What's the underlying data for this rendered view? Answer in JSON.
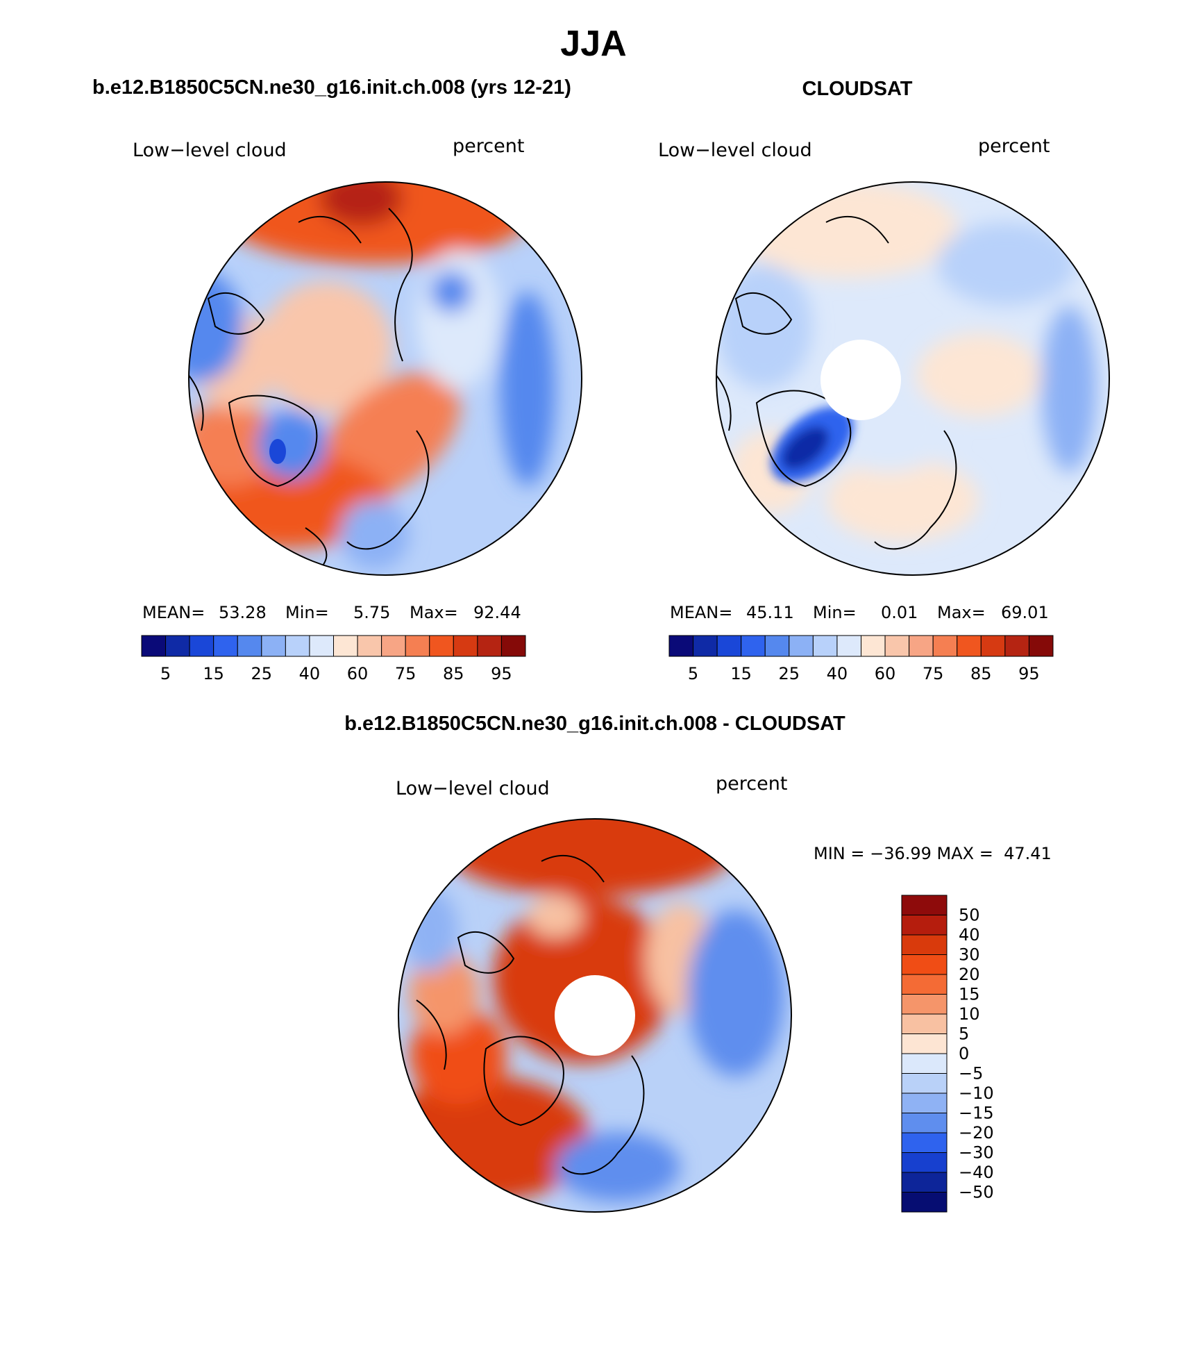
{
  "main_title": "JJA",
  "panels": [
    {
      "title": "b.e12.B1850C5CN.ne30_g16.init.ch.008 (yrs 12-21)",
      "left_label": "Low−level cloud",
      "right_label": "percent",
      "stats": {
        "mean_label": "MEAN=",
        "mean_value": "53.28",
        "min_label": "Min=",
        "min_value": "5.75",
        "max_label": "Max=",
        "max_value": "92.44"
      }
    },
    {
      "title": "CLOUDSAT",
      "left_label": "Low−level cloud",
      "right_label": "percent",
      "stats": {
        "mean_label": "MEAN=",
        "mean_value": "45.11",
        "min_label": "Min=",
        "min_value": "0.01",
        "max_label": "Max=",
        "max_value": "69.01"
      }
    },
    {
      "title": "b.e12.B1850C5CN.ne30_g16.init.ch.008 - CLOUDSAT",
      "left_label": "Low−level cloud",
      "right_label": "percent",
      "stats": {
        "text": "MIN = −36.99 MAX =  47.41"
      }
    }
  ],
  "colorbars": {
    "absolute": {
      "tick_labels": [
        "5",
        "15",
        "25",
        "40",
        "60",
        "75",
        "85",
        "95"
      ],
      "colors": [
        "#0a0a78",
        "#0f2aa6",
        "#1a47d8",
        "#2f63ee",
        "#5588ee",
        "#8cb1f5",
        "#b8d1fa",
        "#dde9fb",
        "#fde6d4",
        "#f9c6ab",
        "#f7a585",
        "#f57f52",
        "#f0561f",
        "#d63a12",
        "#b52412",
        "#850a08"
      ]
    },
    "difference": {
      "tick_labels": [
        "50",
        "40",
        "30",
        "20",
        "15",
        "10",
        "5",
        "0",
        "−5",
        "−10",
        "−15",
        "−20",
        "−30",
        "−40",
        "−50"
      ],
      "colors": [
        "#8e0b0b",
        "#b51d0d",
        "#d93a0c",
        "#f04d15",
        "#f46b35",
        "#f5956a",
        "#f8c1a2",
        "#fde5d3",
        "#dbe8fb",
        "#b9d1f8",
        "#8fb2f4",
        "#5f8eee",
        "#2f63ee",
        "#1740cf",
        "#0d2599",
        "#060d72"
      ]
    }
  },
  "chart_data": [
    {
      "type": "heatmap",
      "title": "b.e12.B1850C5CN.ne30_g16.init.ch.008 (yrs 12-21)",
      "field": "Low−level cloud",
      "units": "percent",
      "projection": "north polar stereographic",
      "mean": 53.28,
      "min": 5.75,
      "max": 92.44,
      "contour_levels": [
        5,
        10,
        15,
        20,
        25,
        30,
        40,
        50,
        60,
        70,
        75,
        80,
        85,
        90,
        95
      ]
    },
    {
      "type": "heatmap",
      "title": "CLOUDSAT",
      "field": "Low−level cloud",
      "units": "percent",
      "projection": "north polar stereographic",
      "mean": 45.11,
      "min": 0.01,
      "max": 69.01,
      "contour_levels": [
        5,
        10,
        15,
        20,
        25,
        30,
        40,
        50,
        60,
        70,
        75,
        80,
        85,
        90,
        95
      ]
    },
    {
      "type": "heatmap",
      "title": "b.e12.B1850C5CN.ne30_g16.init.ch.008 - CLOUDSAT",
      "field": "Low−level cloud",
      "units": "percent",
      "projection": "north polar stereographic",
      "min": -36.99,
      "max": 47.41,
      "contour_levels": [
        -50,
        -40,
        -30,
        -20,
        -15,
        -10,
        -5,
        0,
        5,
        10,
        15,
        20,
        30,
        40,
        50
      ]
    }
  ]
}
